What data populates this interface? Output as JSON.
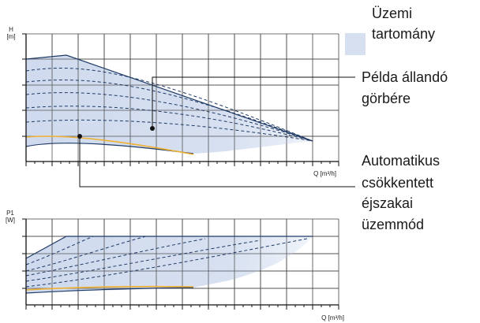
{
  "top_chart": {
    "y_axis_symbol": "H",
    "y_axis_unit": "[m]",
    "x_axis_label": "Q [m³/h]"
  },
  "bottom_chart": {
    "y_axis_symbol": "P1",
    "y_axis_unit": "[W]",
    "x_axis_label": "Q [m³/h]"
  },
  "legend": {
    "operating_range_line1": "Üzemi",
    "operating_range_line2": "tartomány",
    "example_curve_line1": "Példa állandó",
    "example_curve_line2": "görbére",
    "night_mode_line1": "Automatikus",
    "night_mode_line2": "csökkentett",
    "night_mode_line3": "éjszakai",
    "night_mode_line4": "üzemmód"
  },
  "colors": {
    "operating_range_fill": "#d6e0f0",
    "curve_line": "#1f3a66",
    "night_mode_curve": "#f0b030",
    "grid": "#333333"
  }
}
